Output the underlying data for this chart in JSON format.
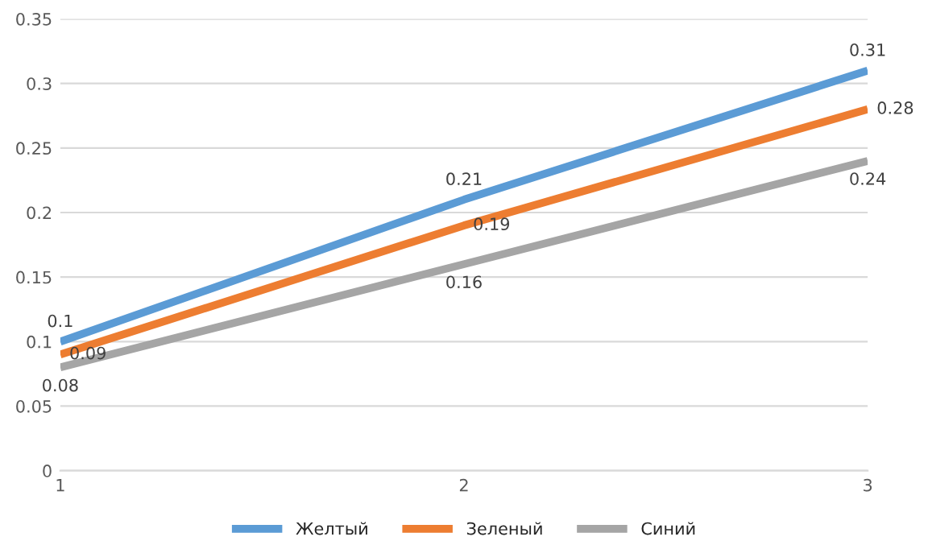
{
  "chart_data": {
    "type": "line",
    "x": [
      1,
      2,
      3
    ],
    "series": [
      {
        "name": "Желтый",
        "color": "#5b9bd5",
        "values": [
          0.1,
          0.21,
          0.31
        ]
      },
      {
        "name": "Зеленый",
        "color": "#ed7d31",
        "values": [
          0.09,
          0.19,
          0.28
        ]
      },
      {
        "name": "Синий",
        "color": "#a5a5a5",
        "values": [
          0.08,
          0.16,
          0.24
        ]
      }
    ],
    "xlim": [
      1,
      3
    ],
    "xticks": [
      1,
      2,
      3
    ],
    "ylim": [
      0,
      0.35
    ],
    "yticks": [
      0,
      0.05,
      0.1,
      0.15,
      0.2,
      0.25,
      0.3,
      0.35
    ],
    "grid": "y",
    "legend": "bottom",
    "data_labels": true,
    "marker": "none",
    "line_style": "solid"
  }
}
